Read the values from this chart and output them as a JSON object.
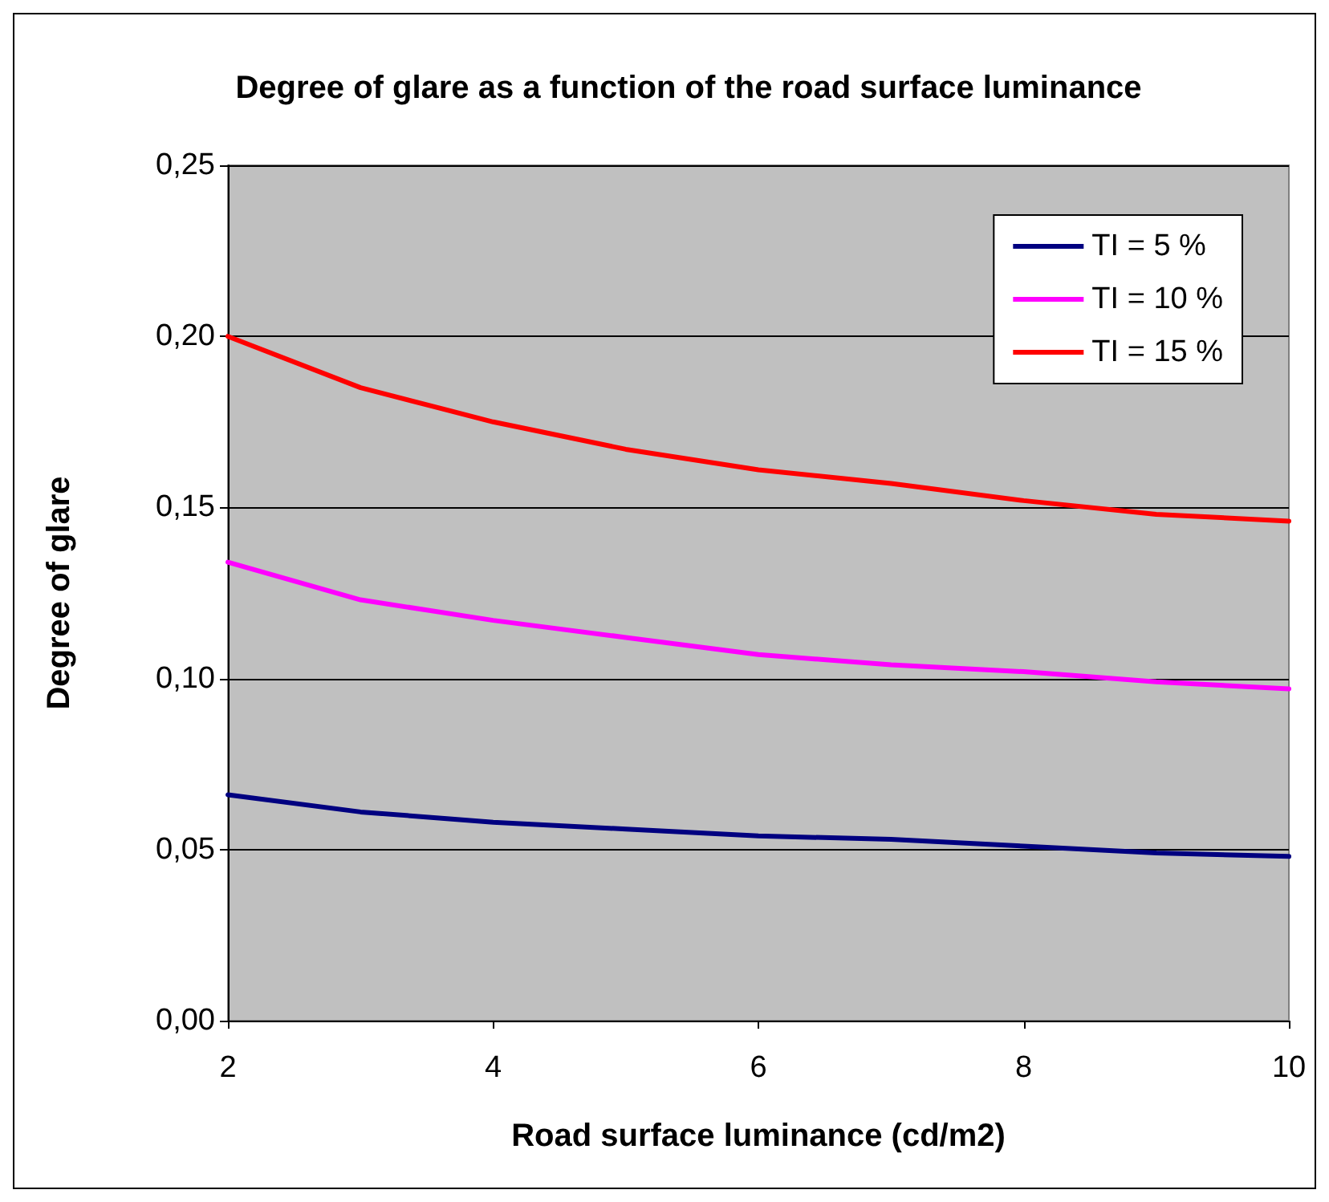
{
  "chart_data": {
    "type": "line",
    "title": "Degree of glare as a function of the road surface luminance",
    "xlabel": "Road surface luminance (cd/m2)",
    "ylabel": "Degree of glare",
    "x": [
      2,
      3,
      4,
      5,
      6,
      7,
      8,
      9,
      10
    ],
    "series": [
      {
        "name": "TI = 5 %",
        "color": "#000080",
        "values": [
          0.066,
          0.061,
          0.058,
          0.056,
          0.054,
          0.053,
          0.051,
          0.049,
          0.048
        ]
      },
      {
        "name": "TI = 10 %",
        "color": "#ff00ff",
        "values": [
          0.134,
          0.123,
          0.117,
          0.112,
          0.107,
          0.104,
          0.102,
          0.099,
          0.097
        ]
      },
      {
        "name": "TI = 15 %",
        "color": "#ff0000",
        "values": [
          0.2,
          0.185,
          0.175,
          0.167,
          0.161,
          0.157,
          0.152,
          0.148,
          0.146
        ]
      }
    ],
    "xlim": [
      2,
      10
    ],
    "xticks": [
      2,
      4,
      6,
      8,
      10
    ],
    "ylim": [
      0,
      0.25
    ],
    "yticks": [
      {
        "value": 0,
        "label": "0,00"
      },
      {
        "value": 0.05,
        "label": "0,05"
      },
      {
        "value": 0.1,
        "label": "0,10"
      },
      {
        "value": 0.15,
        "label": "0,15"
      },
      {
        "value": 0.2,
        "label": "0,20"
      },
      {
        "value": 0.25,
        "label": "0,25"
      }
    ],
    "grid": "y",
    "legend": "top right",
    "marker": "none",
    "line_style": "solid"
  }
}
